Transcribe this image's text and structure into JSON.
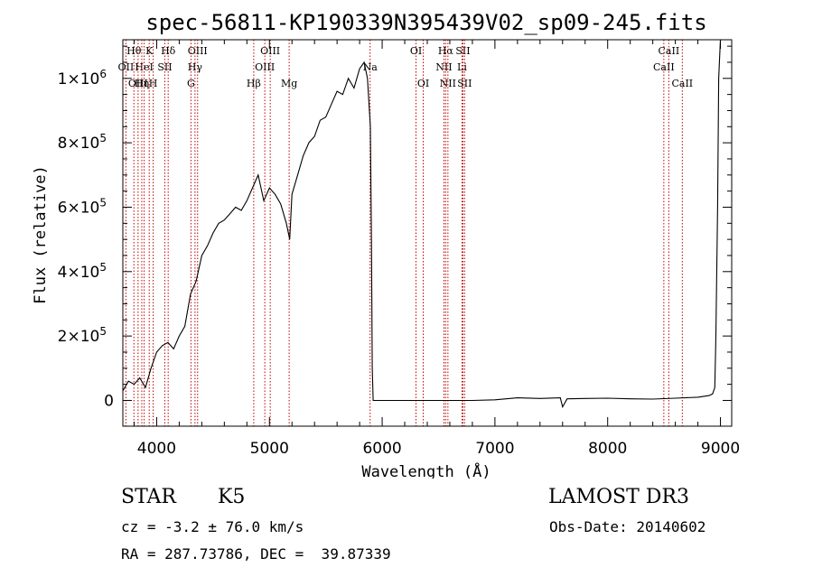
{
  "chart_data": {
    "type": "line",
    "title": "spec-56811-KP190339N395439V02_sp09-245.fits",
    "xlabel": "Wavelength (Å)",
    "ylabel": "Flux (relative)",
    "xlim": [
      3700,
      9100
    ],
    "ylim": [
      -80000,
      1120000
    ],
    "x_ticks": [
      {
        "value": 4000,
        "label": "4000"
      },
      {
        "value": 5000,
        "label": "5000"
      },
      {
        "value": 6000,
        "label": "6000"
      },
      {
        "value": 7000,
        "label": "7000"
      },
      {
        "value": 8000,
        "label": "8000"
      },
      {
        "value": 9000,
        "label": "9000"
      }
    ],
    "y_ticks": [
      {
        "value": 0,
        "label": "0",
        "exp": ""
      },
      {
        "value": 200000,
        "label": "2×10",
        "exp": "5"
      },
      {
        "value": 400000,
        "label": "4×10",
        "exp": "5"
      },
      {
        "value": 600000,
        "label": "6×10",
        "exp": "5"
      },
      {
        "value": 800000,
        "label": "8×10",
        "exp": "5"
      },
      {
        "value": 1000000,
        "label": "1×10",
        "exp": "6"
      }
    ],
    "series": [
      {
        "name": "flux",
        "x": [
          3700,
          3750,
          3800,
          3850,
          3900,
          3950,
          4000,
          4050,
          4100,
          4150,
          4200,
          4250,
          4300,
          4350,
          4400,
          4450,
          4500,
          4550,
          4600,
          4650,
          4700,
          4750,
          4800,
          4850,
          4900,
          4950,
          5000,
          5050,
          5100,
          5150,
          5180,
          5200,
          5250,
          5300,
          5350,
          5400,
          5450,
          5500,
          5550,
          5600,
          5650,
          5700,
          5750,
          5800,
          5840,
          5870,
          5895,
          5905,
          5912,
          5920,
          6200,
          6500,
          6800,
          7000,
          7200,
          7400,
          7580,
          7600,
          7640,
          7800,
          8000,
          8200,
          8400,
          8600,
          8800,
          8900,
          8930,
          8950,
          8960,
          8975,
          8985,
          9000,
          9020
        ],
        "y": [
          30000,
          60000,
          50000,
          70000,
          40000,
          100000,
          150000,
          170000,
          180000,
          160000,
          200000,
          230000,
          330000,
          370000,
          450000,
          480000,
          520000,
          550000,
          560000,
          580000,
          600000,
          590000,
          620000,
          660000,
          700000,
          620000,
          660000,
          640000,
          610000,
          550000,
          500000,
          640000,
          700000,
          760000,
          800000,
          820000,
          870000,
          880000,
          920000,
          960000,
          950000,
          1000000,
          970000,
          1030000,
          1050000,
          1000000,
          850000,
          500000,
          100000,
          0,
          0,
          0,
          0,
          2000,
          8000,
          6000,
          8000,
          -20000,
          5000,
          6000,
          7000,
          5000,
          4000,
          7000,
          10000,
          15000,
          20000,
          40000,
          200000,
          600000,
          1000000,
          1150000,
          1150000
        ]
      }
    ],
    "spectral_lines": [
      {
        "label": "Hθ",
        "x": 3798,
        "row": 0
      },
      {
        "label": "K",
        "x": 3934,
        "row": 0
      },
      {
        "label": "Hδ",
        "x": 4102,
        "row": 0
      },
      {
        "label": "OIII",
        "x": 4363,
        "row": 0
      },
      {
        "label": "OIII",
        "x": 5007,
        "row": 0
      },
      {
        "label": "OI",
        "x": 6300,
        "row": 0
      },
      {
        "label": "Hα",
        "x": 6563,
        "row": 0
      },
      {
        "label": "SII",
        "x": 6716,
        "row": 0
      },
      {
        "label": "CaII",
        "x": 8542,
        "row": 0
      },
      {
        "label": "OII",
        "x": 3727,
        "row": 1
      },
      {
        "label": "HeI",
        "x": 3889,
        "row": 1
      },
      {
        "label": "SII",
        "x": 4072,
        "row": 1
      },
      {
        "label": "Hγ",
        "x": 4340,
        "row": 1
      },
      {
        "label": "OIII",
        "x": 4959,
        "row": 1
      },
      {
        "label": "Na",
        "x": 5893,
        "row": 1
      },
      {
        "label": "NII",
        "x": 6548,
        "row": 1
      },
      {
        "label": "Li",
        "x": 6708,
        "row": 1
      },
      {
        "label": "CaII",
        "x": 8498,
        "row": 1
      },
      {
        "label": "OIII",
        "x": 3835,
        "row": 2
      },
      {
        "label": "Hη",
        "x": 3868,
        "row": 2
      },
      {
        "label": "H",
        "x": 3969,
        "row": 2
      },
      {
        "label": "G",
        "x": 4304,
        "row": 2
      },
      {
        "label": "Hβ",
        "x": 4861,
        "row": 2
      },
      {
        "label": "Mg",
        "x": 5175,
        "row": 2
      },
      {
        "label": "OI",
        "x": 6364,
        "row": 2
      },
      {
        "label": "NII",
        "x": 6583,
        "row": 2
      },
      {
        "label": "SII",
        "x": 6731,
        "row": 2
      },
      {
        "label": "CaII",
        "x": 8662,
        "row": 2
      }
    ]
  },
  "info": {
    "object_class": "STAR",
    "subclass": "K5",
    "survey": "LAMOST DR3",
    "redshift": "cz = -3.2 ± 76.0 km/s",
    "obs_date": "Obs-Date: 20140602",
    "coords": "RA = 287.73786, DEC =  39.87339"
  }
}
